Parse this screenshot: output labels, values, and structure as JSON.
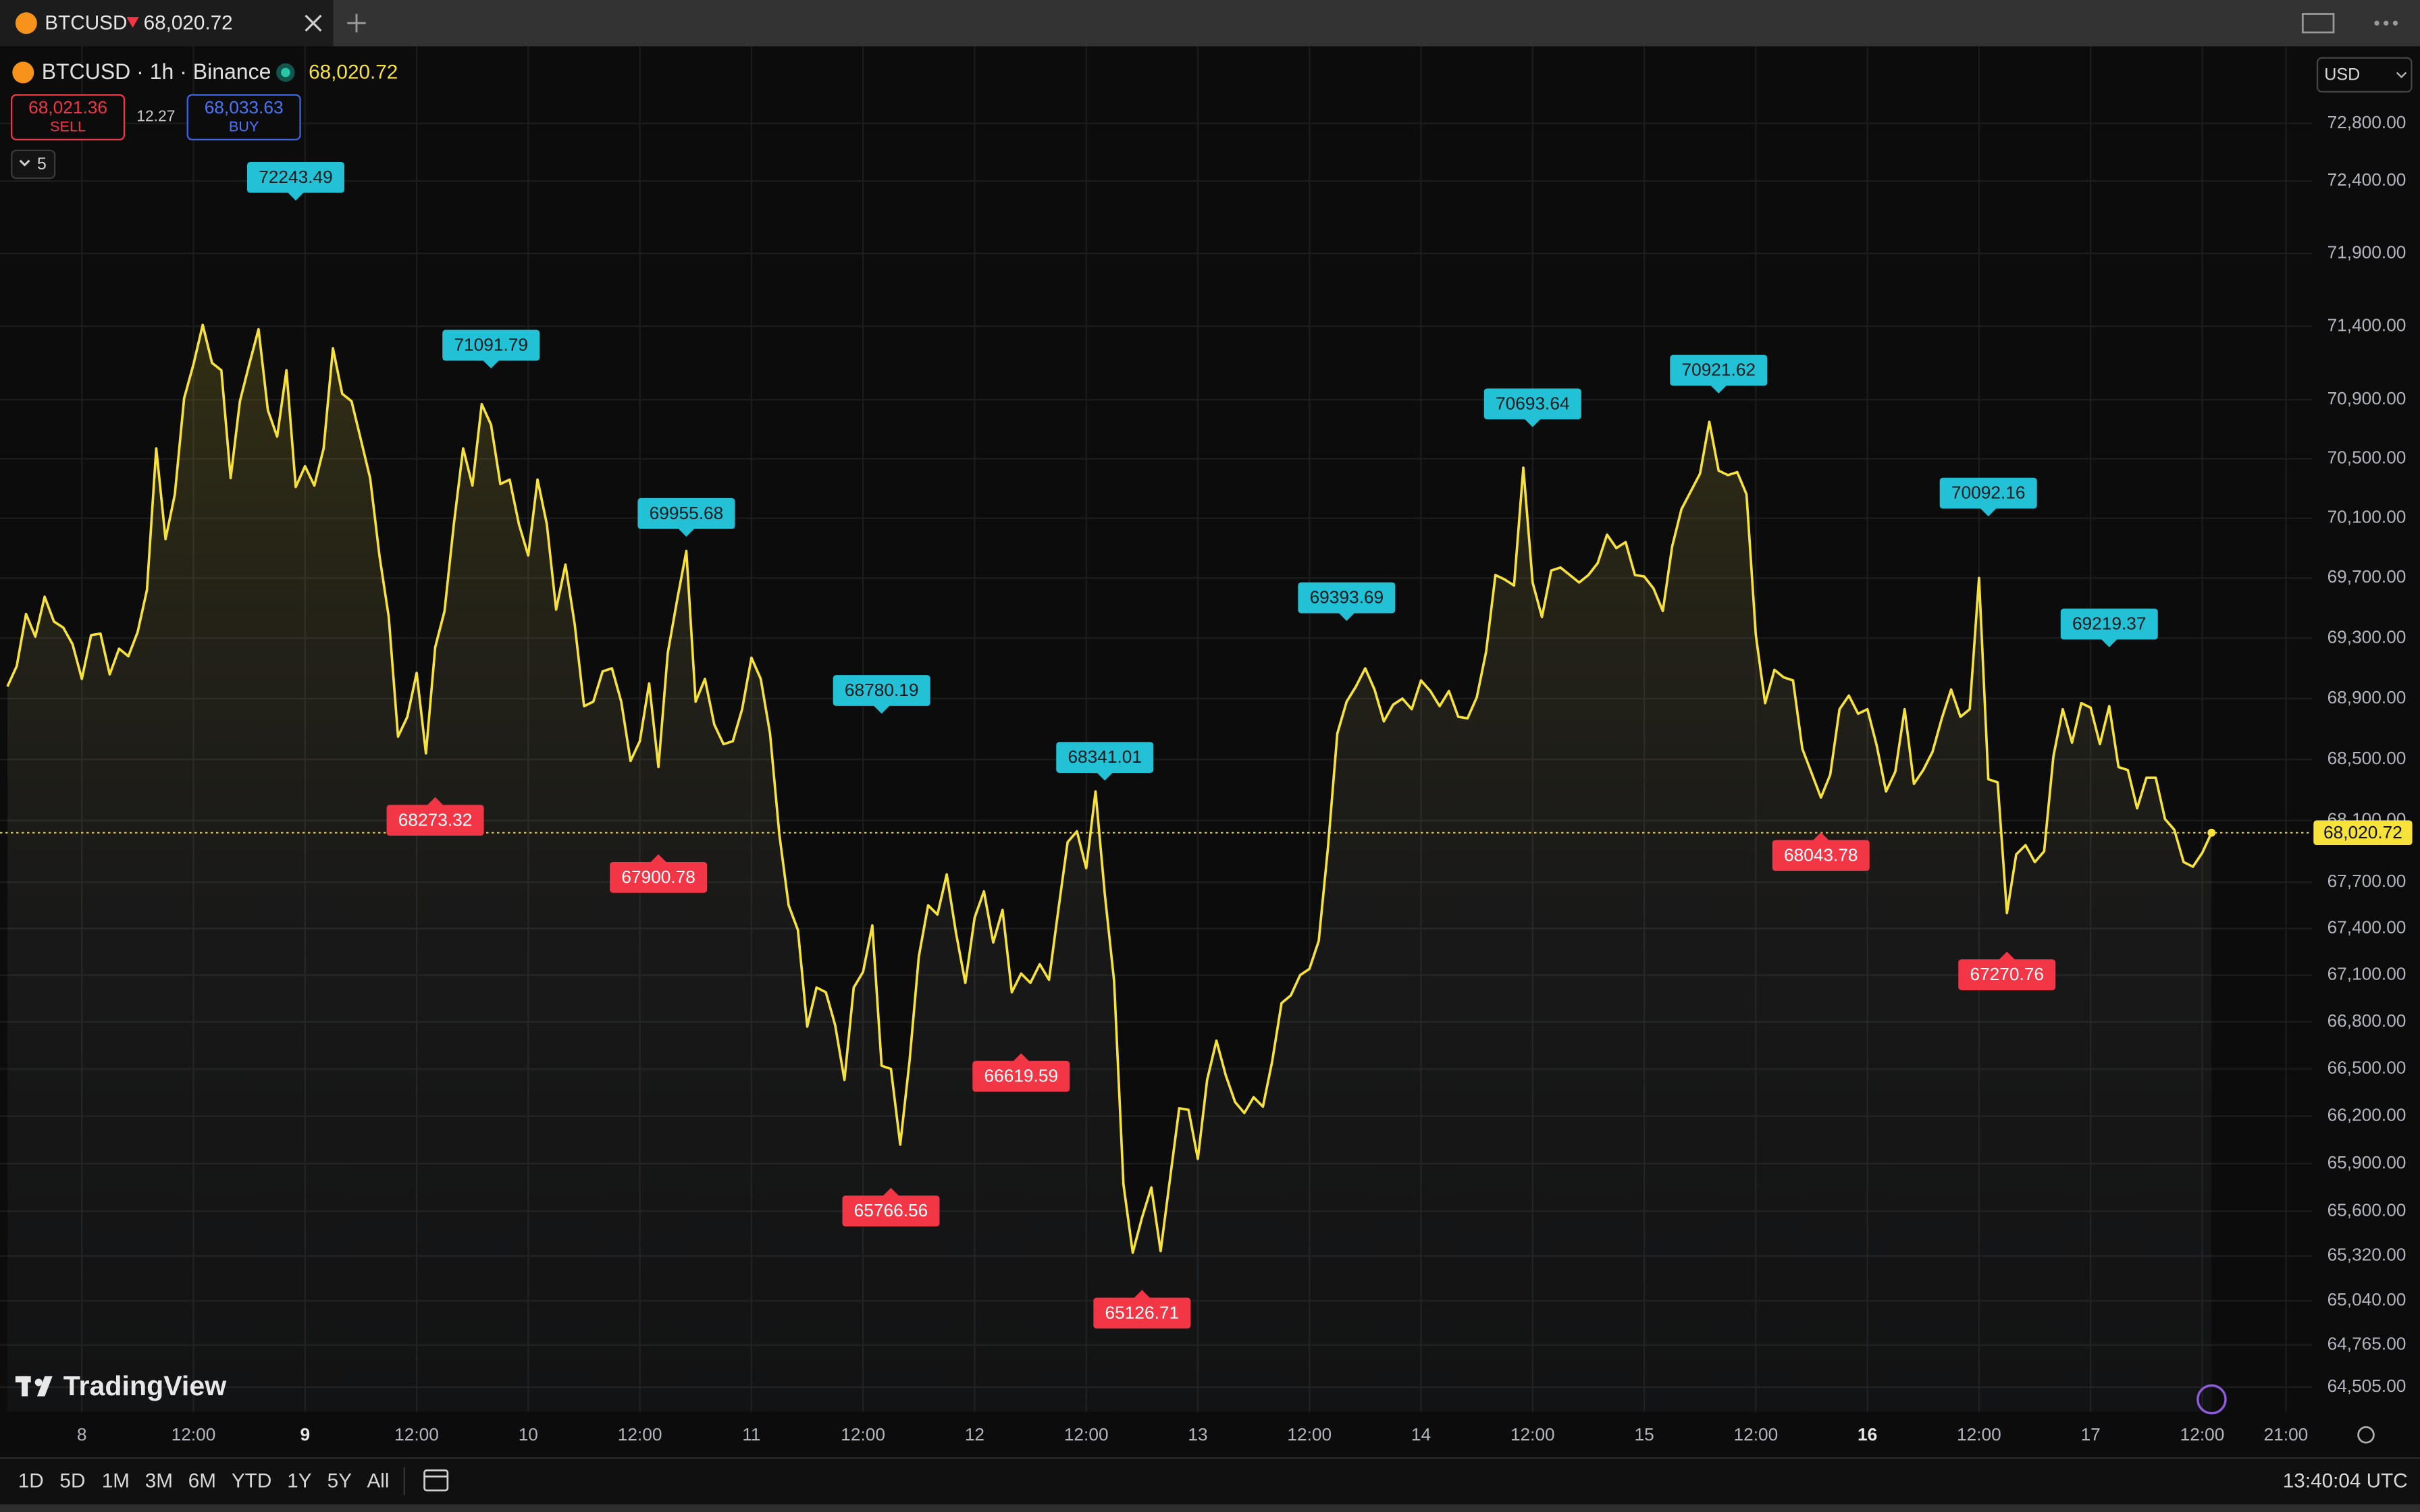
{
  "tab": {
    "symbol": "BTCUSD"
  },
  "header": {
    "title": "BTCUSD · 1h · Binance"
  },
  "trade": {
    "sell_price": "68,021.36",
    "sell_label": "SELL",
    "spread": "12.27",
    "buy_price": "68,033.63",
    "buy_label": "BUY"
  },
  "indicators": {
    "count": "5"
  },
  "currency": "USD",
  "brand": "TradingView",
  "toolbar": {
    "ranges": [
      "1D",
      "5D",
      "1M",
      "3M",
      "6M",
      "YTD",
      "1Y",
      "5Y",
      "All"
    ],
    "clock": "13:40:04 UTC"
  },
  "chart_data": {
    "type": "line",
    "log_scale": true,
    "grid": true,
    "color": "#f7e13b",
    "last_price": {
      "value": 68020.72,
      "label": "68,020.72"
    },
    "xlim": [
      -8.8,
      239.8
    ],
    "ylim": [
      64353,
      73340
    ],
    "xticks": [
      {
        "value": 0,
        "label": "8"
      },
      {
        "value": 12,
        "label": "12:00"
      },
      {
        "value": 24,
        "label": "9"
      },
      {
        "value": 36,
        "label": "12:00"
      },
      {
        "value": 48,
        "label": "10"
      },
      {
        "value": 60,
        "label": "12:00"
      },
      {
        "value": 72,
        "label": "11"
      },
      {
        "value": 84,
        "label": "12:00"
      },
      {
        "value": 96,
        "label": "12"
      },
      {
        "value": 108,
        "label": "12:00"
      },
      {
        "value": 120,
        "label": "13"
      },
      {
        "value": 132,
        "label": "12:00"
      },
      {
        "value": 144,
        "label": "14"
      },
      {
        "value": 156,
        "label": "12:00"
      },
      {
        "value": 168,
        "label": "15"
      },
      {
        "value": 180,
        "label": "12:00"
      },
      {
        "value": 192,
        "label": "16"
      },
      {
        "value": 204,
        "label": "12:00"
      },
      {
        "value": 216,
        "label": "17"
      },
      {
        "value": 228,
        "label": "12:00"
      },
      {
        "value": 237,
        "label": "21:00"
      }
    ],
    "yticks": [
      {
        "value": 72800,
        "label": "72,800.00"
      },
      {
        "value": 72400,
        "label": "72,400.00"
      },
      {
        "value": 71900,
        "label": "71,900.00"
      },
      {
        "value": 71400,
        "label": "71,400.00"
      },
      {
        "value": 70900,
        "label": "70,900.00"
      },
      {
        "value": 70500,
        "label": "70,500.00"
      },
      {
        "value": 70100,
        "label": "70,100.00"
      },
      {
        "value": 69700,
        "label": "69,700.00"
      },
      {
        "value": 69300,
        "label": "69,300.00"
      },
      {
        "value": 68900,
        "label": "68,900.00"
      },
      {
        "value": 68500,
        "label": "68,500.00"
      },
      {
        "value": 68100,
        "label": "68,100.00"
      },
      {
        "value": 67700,
        "label": "67,700.00"
      },
      {
        "value": 67400,
        "label": "67,400.00"
      },
      {
        "value": 67100,
        "label": "67,100.00"
      },
      {
        "value": 66800,
        "label": "66,800.00"
      },
      {
        "value": 66500,
        "label": "66,500.00"
      },
      {
        "value": 66200,
        "label": "66,200.00"
      },
      {
        "value": 65900,
        "label": "65,900.00"
      },
      {
        "value": 65600,
        "label": "65,600.00"
      },
      {
        "value": 65320,
        "label": "65,320.00"
      },
      {
        "value": 65040,
        "label": "65,040.00"
      },
      {
        "value": 64765,
        "label": "64,765.00"
      },
      {
        "value": 64505,
        "label": "64,505.00"
      }
    ],
    "x": [
      -8,
      -7,
      -6,
      -5,
      -4,
      -3,
      -2,
      -1,
      0,
      1,
      2,
      3,
      4,
      5,
      6,
      7,
      8,
      9,
      10,
      11,
      12,
      13,
      14,
      15,
      16,
      17,
      18,
      19,
      20,
      21,
      22,
      23,
      24,
      25,
      26,
      27,
      28,
      29,
      30,
      31,
      32,
      33,
      34,
      35,
      36,
      37,
      38,
      39,
      40,
      41,
      42,
      43,
      44,
      45,
      46,
      47,
      48,
      49,
      50,
      51,
      52,
      53,
      54,
      55,
      56,
      57,
      58,
      59,
      60,
      61,
      62,
      63,
      64,
      65,
      66,
      67,
      68,
      69,
      70,
      71,
      72,
      73,
      74,
      75,
      76,
      77,
      78,
      79,
      80,
      81,
      82,
      83,
      84,
      85,
      86,
      87,
      88,
      89,
      90,
      91,
      92,
      93,
      94,
      95,
      96,
      97,
      98,
      99,
      100,
      101,
      102,
      103,
      104,
      105,
      106,
      107,
      108,
      109,
      110,
      111,
      112,
      113,
      114,
      115,
      116,
      117,
      118,
      119,
      120,
      121,
      122,
      123,
      124,
      125,
      126,
      127,
      128,
      129,
      130,
      131,
      132,
      133,
      134,
      135,
      136,
      137,
      138,
      139,
      140,
      141,
      142,
      143,
      144,
      145,
      146,
      147,
      148,
      149,
      150,
      151,
      152,
      153,
      154,
      155,
      156,
      157,
      158,
      159,
      160,
      161,
      162,
      163,
      164,
      165,
      166,
      167,
      168,
      169,
      170,
      171,
      172,
      173,
      174,
      175,
      176,
      177,
      178,
      179,
      180,
      181,
      182,
      183,
      184,
      185,
      186,
      187,
      188,
      189,
      190,
      191,
      192,
      193,
      194,
      195,
      196,
      197,
      198,
      199,
      200,
      201,
      202,
      203,
      204,
      205,
      206,
      207,
      208,
      209,
      210,
      211,
      212,
      213,
      214,
      215,
      216,
      217,
      218,
      219,
      220,
      221,
      222,
      223,
      224,
      225,
      226,
      227,
      228,
      229
    ],
    "series": [
      {
        "name": "BTCUSD",
        "color": "#f7e13b",
        "values": [
          68980,
          69115,
          69460,
          69310,
          69575,
          69410,
          69370,
          69260,
          69030,
          69320,
          69330,
          69060,
          69230,
          69180,
          69340,
          69620,
          70570,
          69960,
          70260,
          70910,
          71140,
          71410,
          71150,
          71100,
          70370,
          70890,
          71140,
          71380,
          70830,
          70650,
          71100,
          70310,
          70450,
          70320,
          70570,
          71250,
          70940,
          70890,
          70630,
          70370,
          69850,
          69440,
          68650,
          68780,
          69070,
          68540,
          69240,
          69480,
          70060,
          70570,
          70320,
          70870,
          70730,
          70330,
          70360,
          70060,
          69850,
          70360,
          70060,
          69490,
          69790,
          69390,
          68850,
          68880,
          69080,
          69100,
          68880,
          68490,
          68620,
          69000,
          68450,
          69200,
          69550,
          69880,
          68880,
          69030,
          68730,
          68600,
          68620,
          68830,
          69170,
          69030,
          68670,
          68010,
          67550,
          67390,
          66770,
          67020,
          66990,
          66780,
          66430,
          67020,
          67120,
          67420,
          66520,
          66500,
          66020,
          66550,
          67220,
          67550,
          67490,
          67750,
          67370,
          67050,
          67470,
          67640,
          67310,
          67520,
          66990,
          67110,
          67050,
          67170,
          67070,
          67520,
          67960,
          68030,
          67790,
          68290,
          67620,
          67060,
          65770,
          65340,
          65560,
          65750,
          65350,
          65800,
          66250,
          66240,
          65930,
          66430,
          66680,
          66460,
          66290,
          66220,
          66320,
          66260,
          66550,
          66920,
          66970,
          67100,
          67140,
          67320,
          67930,
          68670,
          68880,
          68980,
          69100,
          68960,
          68750,
          68860,
          68900,
          68830,
          69020,
          68950,
          68850,
          68950,
          68780,
          68770,
          68910,
          69210,
          69720,
          69690,
          69650,
          70440,
          69670,
          69440,
          69750,
          69770,
          69720,
          69670,
          69720,
          69800,
          69990,
          69900,
          69940,
          69720,
          69710,
          69630,
          69480,
          69910,
          70160,
          70280,
          70400,
          70750,
          70420,
          70390,
          70410,
          70260,
          69320,
          68870,
          69090,
          69040,
          69020,
          68570,
          68410,
          68250,
          68400,
          68830,
          68920,
          68800,
          68830,
          68590,
          68290,
          68420,
          68830,
          68340,
          68430,
          68550,
          68770,
          68960,
          68780,
          68830,
          69700,
          68370,
          68350,
          67500,
          67880,
          67940,
          67830,
          67900,
          68520,
          68830,
          68610,
          68870,
          68840,
          68600,
          68850,
          68450,
          68430,
          68180,
          68380,
          68380,
          68110,
          68040,
          67830,
          67800,
          67890,
          68020.72
        ]
      }
    ],
    "annotations": [
      {
        "kind": "high",
        "x": 23,
        "value": 72243.49
      },
      {
        "kind": "high",
        "x": 44,
        "value": 71091.79
      },
      {
        "kind": "high",
        "x": 65,
        "value": 69955.68
      },
      {
        "kind": "high",
        "x": 86,
        "value": 68780.19
      },
      {
        "kind": "high",
        "x": 110,
        "value": 68341.01
      },
      {
        "kind": "high",
        "x": 136,
        "value": 69393.69
      },
      {
        "kind": "high",
        "x": 156,
        "value": 70693.64
      },
      {
        "kind": "high",
        "x": 176,
        "value": 70921.62
      },
      {
        "kind": "high",
        "x": 205,
        "value": 70092.16
      },
      {
        "kind": "high",
        "x": 218,
        "value": 69219.37
      },
      {
        "kind": "low",
        "x": 38,
        "value": 68273.32
      },
      {
        "kind": "low",
        "x": 62,
        "value": 67900.78
      },
      {
        "kind": "low",
        "x": 87,
        "value": 65766.56
      },
      {
        "kind": "low",
        "x": 101,
        "value": 66619.59
      },
      {
        "kind": "low",
        "x": 114,
        "value": 65126.71
      },
      {
        "kind": "low",
        "x": 187,
        "value": 68043.78
      },
      {
        "kind": "low",
        "x": 207,
        "value": 67270.76
      }
    ],
    "annotation_colors": {
      "high": "#22c1d6",
      "low": "#f23645"
    }
  }
}
